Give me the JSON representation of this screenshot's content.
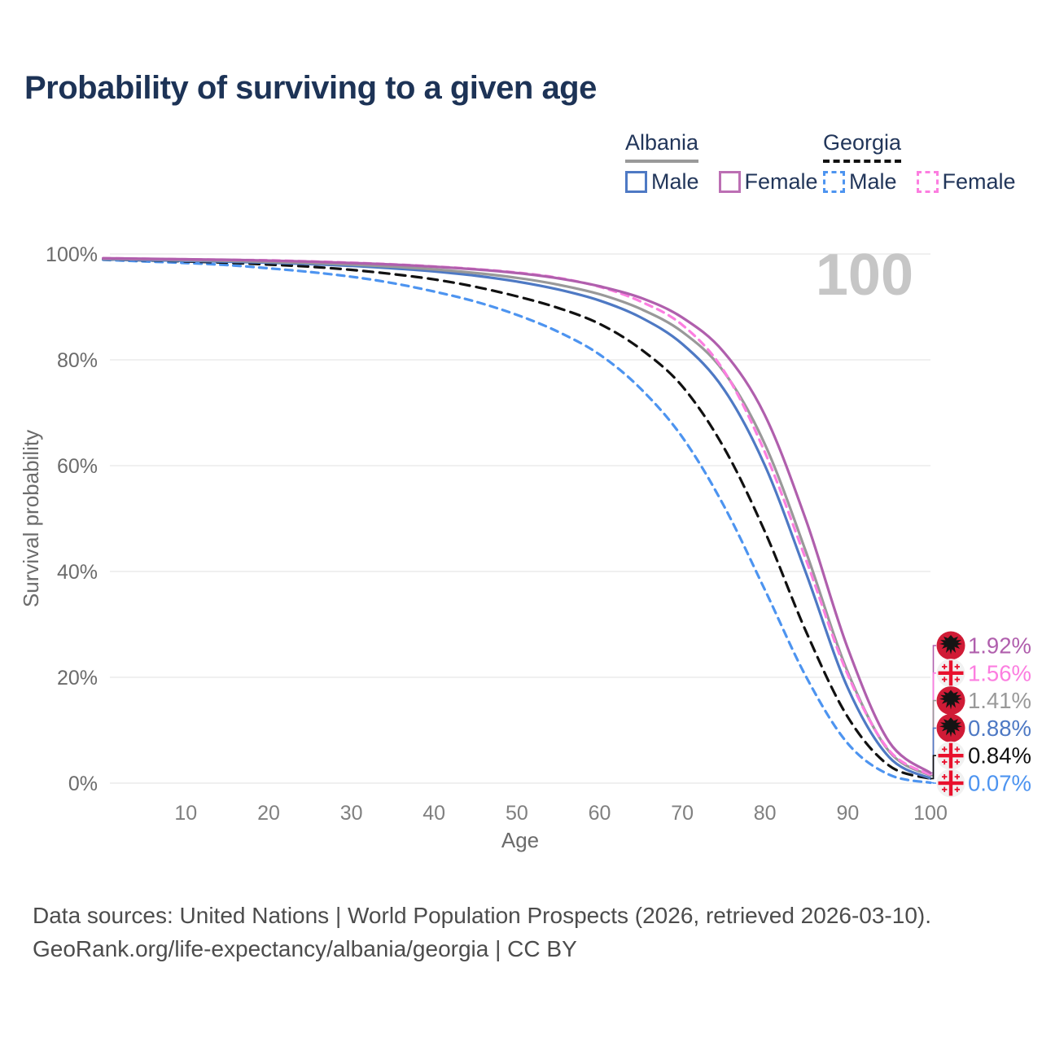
{
  "header": {
    "title": "Probability of surviving to a given age"
  },
  "legend": {
    "groups": [
      {
        "label": "Albania",
        "underline": {
          "style": "solid",
          "color": "#999999"
        },
        "items": [
          {
            "label": "Male",
            "color": "#4e79c4",
            "dashed": false
          },
          {
            "label": "Female",
            "color": "#bc6fb4",
            "dashed": false
          }
        ]
      },
      {
        "label": "Georgia",
        "underline": {
          "style": "dashed",
          "color": "#111111"
        },
        "items": [
          {
            "label": "Male",
            "color": "#4d94f0",
            "dashed": true
          },
          {
            "label": "Female",
            "color": "#fc7ee0",
            "dashed": true
          }
        ]
      }
    ]
  },
  "watermark": "100",
  "chart_data": {
    "type": "line",
    "title": "Probability of surviving to a given age",
    "xlabel": "Age",
    "ylabel": "Survival probability",
    "xlim": [
      0,
      100
    ],
    "ylim": [
      0,
      100
    ],
    "grid": true,
    "legend_position": "top-right",
    "xticks": [
      10,
      20,
      30,
      40,
      50,
      60,
      70,
      80,
      90,
      100
    ],
    "ytick_values": [
      0,
      20,
      40,
      60,
      80,
      100
    ],
    "yticks": [
      "0%",
      "20%",
      "40%",
      "60%",
      "80%",
      "100%"
    ],
    "x": [
      0,
      5,
      10,
      15,
      20,
      25,
      30,
      35,
      40,
      45,
      50,
      55,
      60,
      65,
      70,
      75,
      80,
      85,
      90,
      95,
      100
    ],
    "series": [
      {
        "name": "Albania Female",
        "country": "Albania",
        "sex": "Female",
        "flag": "albania",
        "color": "#b05fad",
        "dash": "",
        "end_label": "1.92%",
        "end_value": 1.92,
        "values": [
          99.2,
          99.1,
          99.0,
          98.9,
          98.75,
          98.55,
          98.3,
          98.0,
          97.6,
          97.1,
          96.4,
          95.4,
          93.9,
          91.7,
          88.0,
          81.5,
          69.5,
          49.5,
          25.5,
          7.8,
          1.92
        ]
      },
      {
        "name": "Georgia Female",
        "country": "Georgia",
        "sex": "Female",
        "flag": "georgia",
        "color": "#fc7ee0",
        "dash": "9 7",
        "end_label": "1.56%",
        "end_value": 1.56,
        "values": [
          99.2,
          99.1,
          99.0,
          98.9,
          98.8,
          98.6,
          98.35,
          98.05,
          97.65,
          97.15,
          96.5,
          95.5,
          93.8,
          91.0,
          86.6,
          78.0,
          62.5,
          42.0,
          20.5,
          6.2,
          1.56
        ]
      },
      {
        "name": "Albania Both sexes",
        "country": "Albania",
        "sex": "Both",
        "flag": "albania",
        "color": "#999999",
        "dash": "",
        "end_label": "1.41%",
        "end_value": 1.41,
        "values": [
          99.1,
          99.0,
          98.85,
          98.7,
          98.5,
          98.3,
          98.0,
          97.6,
          97.1,
          96.4,
          95.5,
          94.2,
          92.4,
          89.6,
          85.3,
          77.8,
          64.0,
          43.5,
          21.0,
          6.0,
          1.41
        ]
      },
      {
        "name": "Albania Male",
        "country": "Albania",
        "sex": "Male",
        "flag": "albania",
        "color": "#4e79c4",
        "dash": "",
        "end_label": "0.88%",
        "end_value": 0.88,
        "values": [
          99.0,
          98.85,
          98.7,
          98.55,
          98.35,
          98.1,
          97.75,
          97.3,
          96.7,
          95.9,
          94.8,
          93.3,
          91.2,
          88.0,
          83.0,
          74.5,
          60.0,
          39.5,
          18.0,
          4.9,
          0.88
        ]
      },
      {
        "name": "Georgia Both sexes",
        "country": "Georgia",
        "sex": "Both",
        "flag": "georgia",
        "color": "#111111",
        "dash": "12 8",
        "end_label": "0.84%",
        "end_value": 0.84,
        "values": [
          99.0,
          98.8,
          98.6,
          98.35,
          98.0,
          97.6,
          97.0,
          96.2,
          95.2,
          93.8,
          92.0,
          89.8,
          86.8,
          82.0,
          75.0,
          63.5,
          47.5,
          28.5,
          12.5,
          3.3,
          0.84
        ]
      },
      {
        "name": "Georgia Male",
        "country": "Georgia",
        "sex": "Male",
        "flag": "georgia",
        "color": "#4d94f0",
        "dash": "9 7",
        "end_label": "0.07%",
        "end_value": 0.07,
        "values": [
          98.9,
          98.6,
          98.3,
          97.9,
          97.3,
          96.6,
          95.7,
          94.5,
          92.9,
          91.0,
          88.5,
          85.3,
          81.0,
          74.5,
          65.4,
          52.5,
          36.5,
          20.0,
          7.5,
          1.6,
          0.07
        ]
      }
    ],
    "flag_colors": {
      "albania_red": "#d01b36",
      "georgia_red": "#e8112d",
      "georgia_bg": "#f1f1f1",
      "eagle_black": "#141414"
    }
  },
  "footer": {
    "line1": "Data sources: United Nations | World Population Prospects (2026, retrieved 2026-03-10).",
    "line2": "GeoRank.org/life-expectancy/albania/georgia | CC BY"
  }
}
